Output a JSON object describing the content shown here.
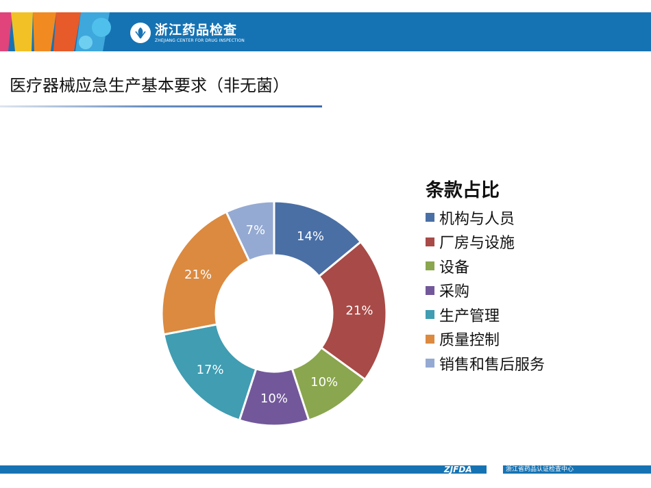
{
  "header": {
    "logo_cn": "浙江药品检查",
    "logo_en": "ZHEJIANG CENTER FOR DRUG INSPECTION"
  },
  "slide": {
    "title": "医疗器械应急生产基本要求（非无菌）"
  },
  "chart_data": {
    "type": "pie",
    "donut": true,
    "title": "条款占比",
    "legend_position": "right",
    "categories": [
      "机构与人员",
      "厂房与设施",
      "设备",
      "采购",
      "生产管理",
      "质量控制",
      "销售和售后服务"
    ],
    "values": [
      14,
      21,
      10,
      10,
      17,
      21,
      7
    ],
    "labels": [
      "14%",
      "21%",
      "10%",
      "10%",
      "17%",
      "21%",
      "7%"
    ],
    "colors": [
      "#4a6fa5",
      "#a84a47",
      "#8aa64e",
      "#72589a",
      "#409db2",
      "#db8a40",
      "#95aad2"
    ]
  },
  "footer": {
    "brand": "ZJFDA",
    "org": "浙江省药品认证检查中心"
  }
}
